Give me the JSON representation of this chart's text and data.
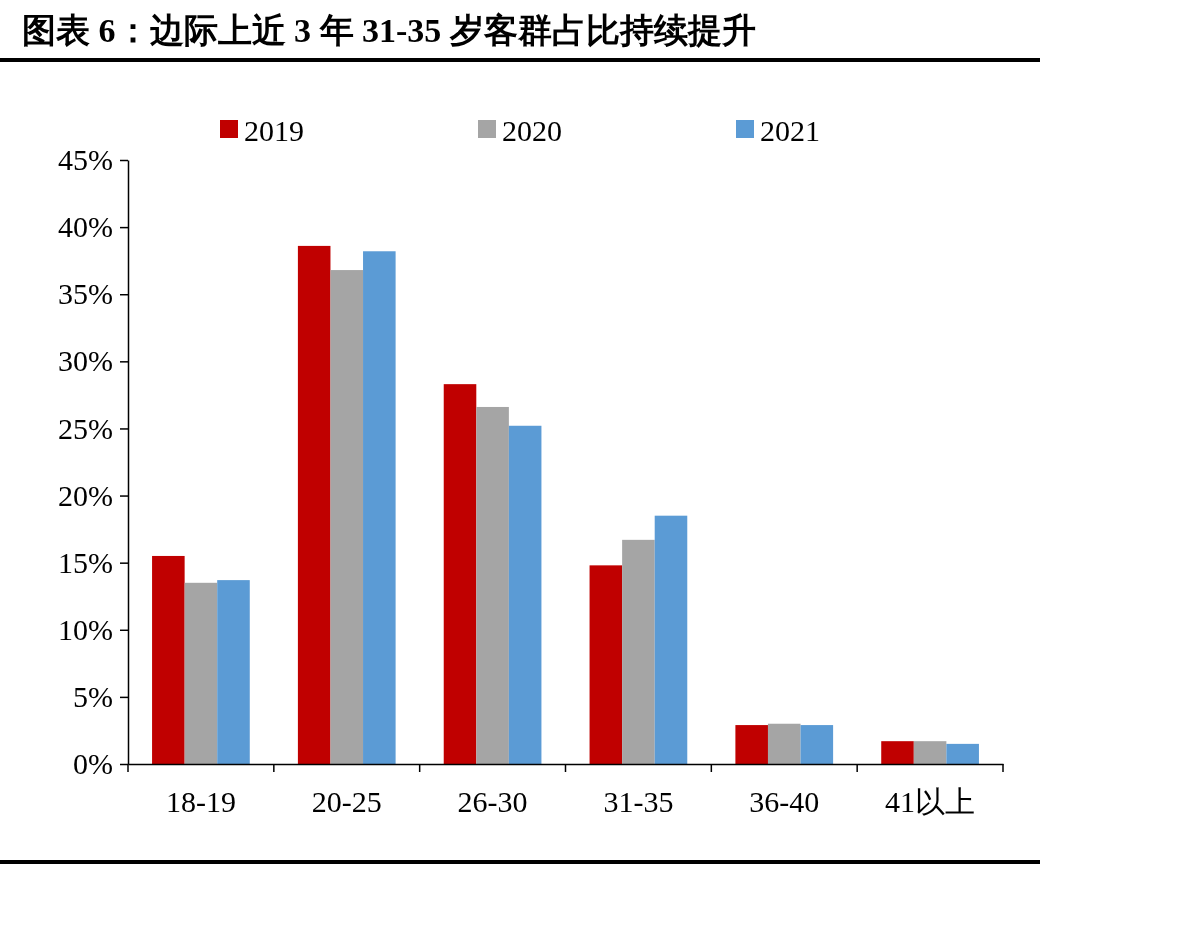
{
  "chart_data": {
    "type": "bar",
    "title": "图表 6：边际上近 3 年 31-35 岁客群占比持续提升",
    "categories": [
      "18-19",
      "20-25",
      "26-30",
      "31-35",
      "36-40",
      "41以上"
    ],
    "series": [
      {
        "name": "2019",
        "color": "#c00000",
        "values": [
          15.5,
          38.6,
          28.3,
          14.8,
          2.9,
          1.7
        ]
      },
      {
        "name": "2020",
        "color": "#a5a5a5",
        "values": [
          13.5,
          36.8,
          26.6,
          16.7,
          3.0,
          1.7
        ]
      },
      {
        "name": "2021",
        "color": "#5b9bd5",
        "values": [
          13.7,
          38.2,
          25.2,
          18.5,
          2.9,
          1.5
        ]
      }
    ],
    "ylim": [
      0,
      45
    ],
    "yticks": [
      {
        "value": 0,
        "label": "0%"
      },
      {
        "value": 5,
        "label": "5%"
      },
      {
        "value": 10,
        "label": "10%"
      },
      {
        "value": 15,
        "label": "15%"
      },
      {
        "value": 20,
        "label": "20%"
      },
      {
        "value": 25,
        "label": "25%"
      },
      {
        "value": 30,
        "label": "30%"
      },
      {
        "value": 35,
        "label": "35%"
      },
      {
        "value": 40,
        "label": "40%"
      },
      {
        "value": 45,
        "label": "45%"
      }
    ],
    "legend": "top",
    "grid": false
  }
}
